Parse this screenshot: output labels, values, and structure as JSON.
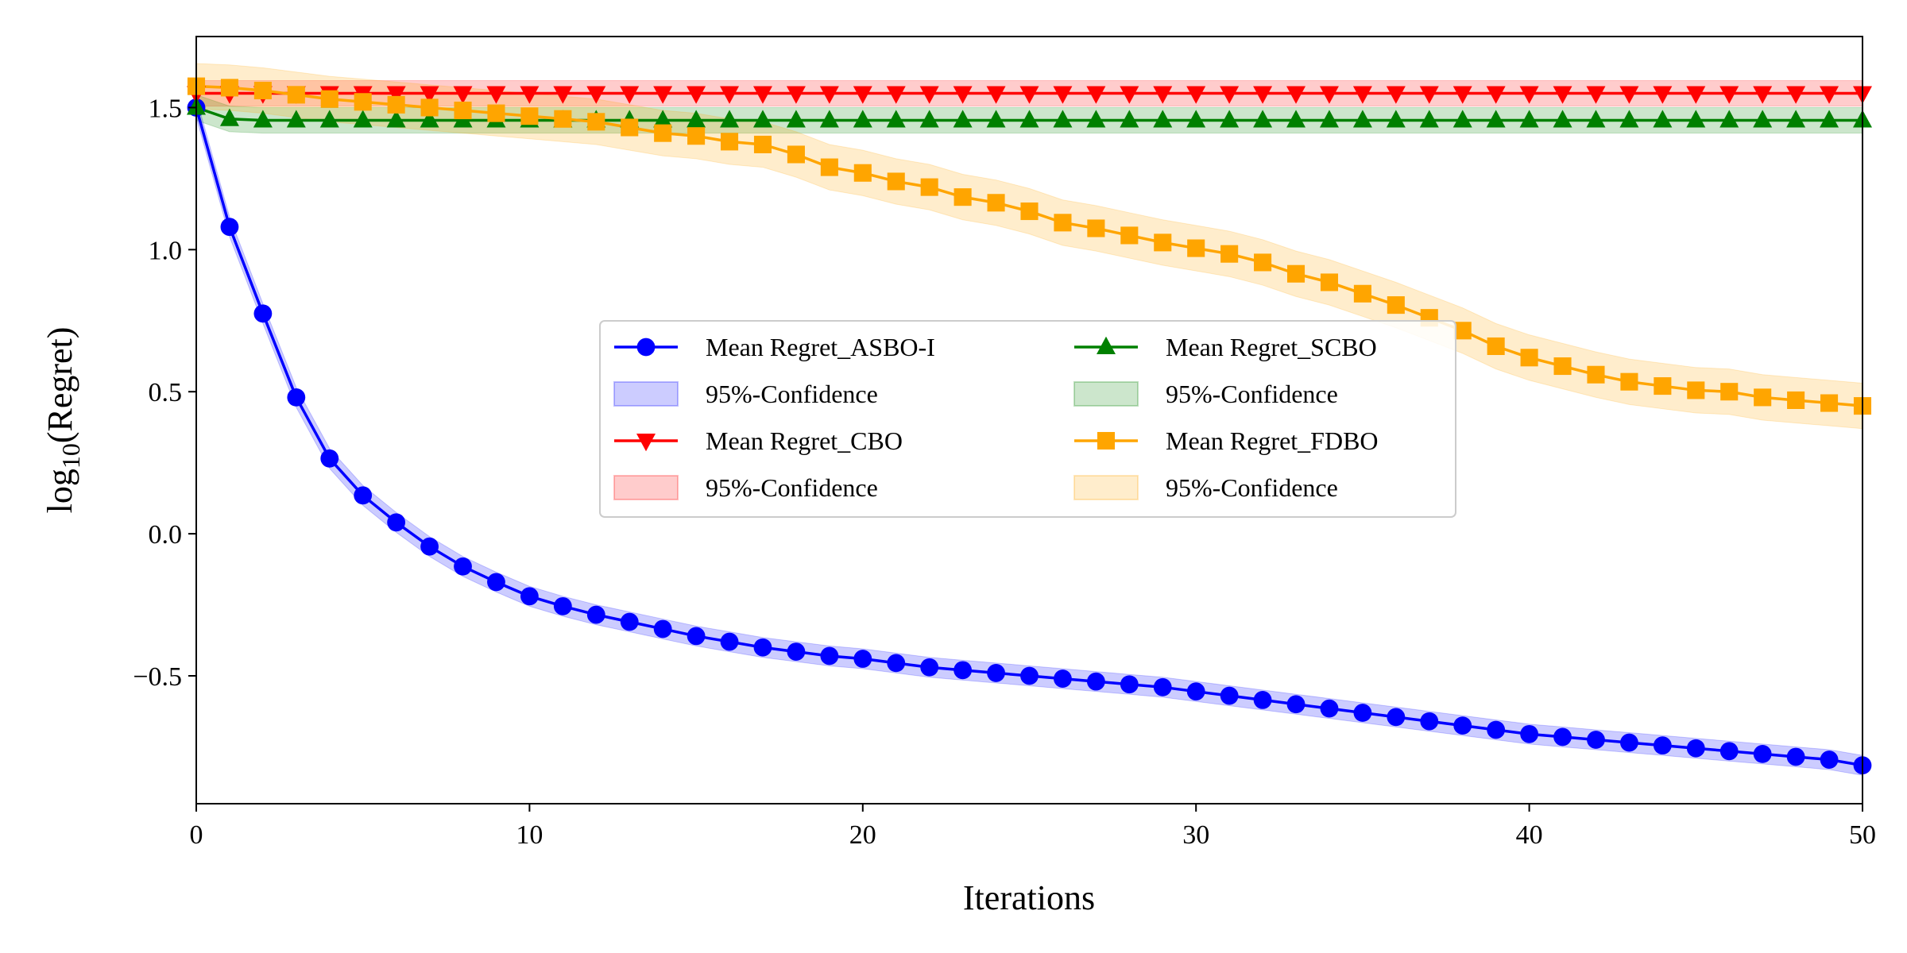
{
  "chart_data": {
    "type": "line",
    "xlabel": "Iterations",
    "ylabel_base": "log",
    "ylabel_sub": "10",
    "ylabel_rest": "(Regret)",
    "xlim": [
      0,
      50
    ],
    "ylim": [
      -0.95,
      1.75
    ],
    "xticks": [
      0,
      10,
      20,
      30,
      40,
      50
    ],
    "xtick_labels": [
      "0",
      "10",
      "20",
      "30",
      "40",
      "50"
    ],
    "yticks": [
      -0.5,
      0.0,
      0.5,
      1.0,
      1.5
    ],
    "ytick_labels": [
      "−0.5",
      "0.0",
      "0.5",
      "1.0",
      "1.5"
    ],
    "grid": false,
    "legend_position": "center",
    "x": [
      0,
      1,
      2,
      3,
      4,
      5,
      6,
      7,
      8,
      9,
      10,
      11,
      12,
      13,
      14,
      15,
      16,
      17,
      18,
      19,
      20,
      21,
      22,
      23,
      24,
      25,
      26,
      27,
      28,
      29,
      30,
      31,
      32,
      33,
      34,
      35,
      36,
      37,
      38,
      39,
      40,
      41,
      42,
      43,
      44,
      45,
      46,
      47,
      48,
      49,
      50
    ],
    "series": [
      {
        "name": "Mean Regret_ASBO-I",
        "band_name": "95%-Confidence",
        "color": "#0000ff",
        "marker": "circle",
        "values": [
          1.5,
          1.08,
          0.775,
          0.48,
          0.265,
          0.135,
          0.04,
          -0.045,
          -0.115,
          -0.17,
          -0.22,
          -0.255,
          -0.285,
          -0.31,
          -0.335,
          -0.36,
          -0.38,
          -0.4,
          -0.415,
          -0.43,
          -0.44,
          -0.455,
          -0.47,
          -0.48,
          -0.49,
          -0.5,
          -0.51,
          -0.52,
          -0.53,
          -0.54,
          -0.555,
          -0.57,
          -0.585,
          -0.6,
          -0.615,
          -0.63,
          -0.645,
          -0.66,
          -0.675,
          -0.69,
          -0.705,
          -0.715,
          -0.725,
          -0.735,
          -0.745,
          -0.755,
          -0.765,
          -0.775,
          -0.785,
          -0.795,
          -0.815
        ],
        "band_halfwidth": 0.035
      },
      {
        "name": "Mean Regret_CBO",
        "band_name": "95%-Confidence",
        "color": "#ff0000",
        "marker": "triangle-down",
        "values": [
          1.55,
          1.55,
          1.55,
          1.55,
          1.55,
          1.55,
          1.55,
          1.55,
          1.55,
          1.55,
          1.55,
          1.55,
          1.55,
          1.55,
          1.55,
          1.55,
          1.55,
          1.55,
          1.55,
          1.55,
          1.55,
          1.55,
          1.55,
          1.55,
          1.55,
          1.55,
          1.55,
          1.55,
          1.55,
          1.55,
          1.55,
          1.55,
          1.55,
          1.55,
          1.55,
          1.55,
          1.55,
          1.55,
          1.55,
          1.55,
          1.55,
          1.55,
          1.55,
          1.55,
          1.55,
          1.55,
          1.55,
          1.55,
          1.55,
          1.55,
          1.55
        ],
        "band_halfwidth": 0.045
      },
      {
        "name": "Mean Regret_SCBO",
        "band_name": "95%-Confidence",
        "color": "#008000",
        "marker": "triangle-up",
        "values": [
          1.5,
          1.46,
          1.455,
          1.455,
          1.455,
          1.455,
          1.455,
          1.455,
          1.455,
          1.455,
          1.455,
          1.455,
          1.455,
          1.455,
          1.455,
          1.455,
          1.455,
          1.455,
          1.455,
          1.455,
          1.455,
          1.455,
          1.455,
          1.455,
          1.455,
          1.455,
          1.455,
          1.455,
          1.455,
          1.455,
          1.455,
          1.455,
          1.455,
          1.455,
          1.455,
          1.455,
          1.455,
          1.455,
          1.455,
          1.455,
          1.455,
          1.455,
          1.455,
          1.455,
          1.455,
          1.455,
          1.455,
          1.455,
          1.455,
          1.455,
          1.455
        ],
        "band_halfwidth": 0.045
      },
      {
        "name": "Mean Regret_FDBO",
        "band_name": "95%-Confidence",
        "color": "#ffa500",
        "marker": "square",
        "values": [
          1.575,
          1.57,
          1.56,
          1.545,
          1.53,
          1.52,
          1.51,
          1.5,
          1.49,
          1.48,
          1.47,
          1.46,
          1.45,
          1.43,
          1.41,
          1.4,
          1.38,
          1.37,
          1.335,
          1.29,
          1.27,
          1.24,
          1.22,
          1.185,
          1.165,
          1.135,
          1.095,
          1.075,
          1.05,
          1.025,
          1.005,
          0.985,
          0.955,
          0.915,
          0.885,
          0.845,
          0.805,
          0.76,
          0.715,
          0.66,
          0.62,
          0.59,
          0.56,
          0.535,
          0.52,
          0.505,
          0.5,
          0.48,
          0.47,
          0.46,
          0.45
        ],
        "band_halfwidth": 0.08
      }
    ]
  }
}
